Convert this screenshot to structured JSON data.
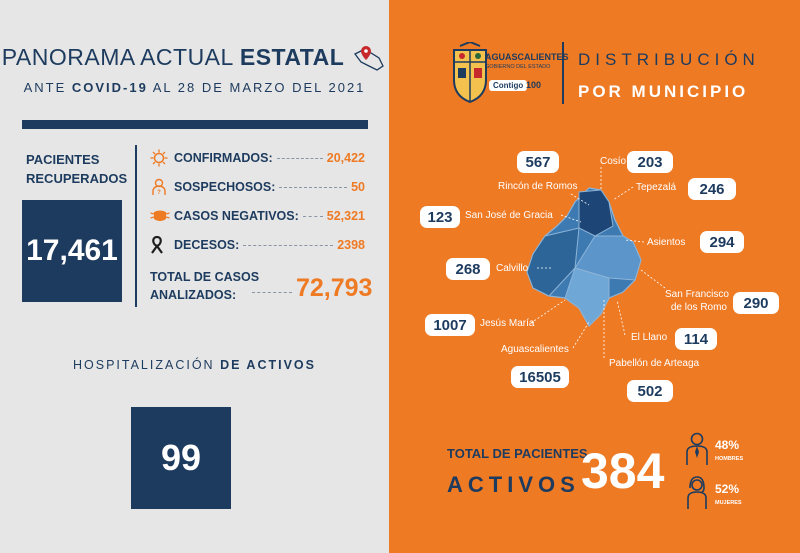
{
  "left": {
    "title_regular": "PANORAMA ACTUAL ",
    "title_bold": "ESTATAL",
    "subtitle_pre": "ANTE ",
    "subtitle_bold": "COVID-19",
    "subtitle_post": " AL 28 DE MARZO DEL 2021",
    "recovered_label_line1": "PACIENTES",
    "recovered_label_line2": "RECUPERADOS",
    "recovered_value": "17,461",
    "stats": [
      {
        "label": "CONFIRMADOS:",
        "value": "20,422",
        "icon": "virus-icon"
      },
      {
        "label": "SOSPECHOSOS:",
        "value": "50",
        "icon": "suspect-icon"
      },
      {
        "label": "CASOS NEGATIVOS:",
        "value": "52,321",
        "icon": "mask-icon"
      },
      {
        "label": "DECESOS:",
        "value": "2398",
        "icon": "ribbon-icon"
      }
    ],
    "total_label_line1": "TOTAL DE CASOS",
    "total_label_line2": "ANALIZADOS:",
    "total_value": "72,793",
    "hosp_regular": "HOSPITALIZACIÓN ",
    "hosp_bold": "DE ACTIVOS",
    "hosp_value": "99"
  },
  "right": {
    "logo_line1": "AGUASCALIENTES",
    "logo_line2": "GOBIERNO DEL ESTADO",
    "logo_line3": "Contigo",
    "logo_line4": "100",
    "dist_line1": "DISTRIBUCIÓN",
    "dist_line2": "POR MUNICIPIO",
    "municipios": [
      {
        "name": "Rincón de Romos",
        "value": "567"
      },
      {
        "name": "Cosío",
        "value": "203"
      },
      {
        "name": "Tepezalá",
        "value": "246"
      },
      {
        "name": "San José de Gracia",
        "value": "123"
      },
      {
        "name": "Asientos",
        "value": "294"
      },
      {
        "name": "Calvillo",
        "value": "268"
      },
      {
        "name": "San Francisco",
        "name2": "de los Romo",
        "value": "290"
      },
      {
        "name": "Jesús María",
        "value": "1007"
      },
      {
        "name": "El Llano",
        "value": "114"
      },
      {
        "name": "Aguascalientes",
        "value": "16505"
      },
      {
        "name": "Pabellón de Arteaga",
        "value": "502"
      }
    ],
    "total_line1": "TOTAL DE PACIENTES",
    "total_line2": "ACTIVOS",
    "total_value": "384",
    "men_pct": "48%",
    "men_label": "HOMBRES",
    "women_pct": "52%",
    "women_label": "MUJERES"
  },
  "colors": {
    "navy": "#1d3b5e",
    "orange": "#ee7a24",
    "panel": "#e6e6e6"
  }
}
